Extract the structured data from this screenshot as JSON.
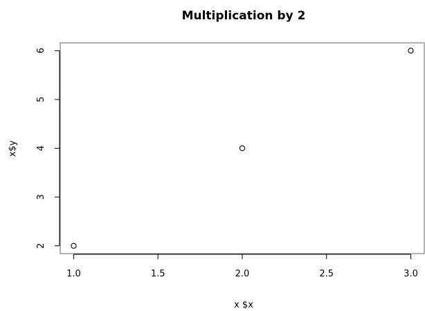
{
  "chart_data": {
    "type": "scatter",
    "title": "Multiplication by 2",
    "xlabel": "x $x",
    "ylabel": "x$y",
    "xlim": [
      0.92,
      3.08
    ],
    "ylim": [
      1.84,
      6.16
    ],
    "x_ticks": [
      1.0,
      1.5,
      2.0,
      2.5,
      3.0
    ],
    "x_tick_labels": [
      "1.0",
      "1.5",
      "2.0",
      "2.5",
      "3.0"
    ],
    "y_ticks": [
      2,
      3,
      4,
      5,
      6
    ],
    "y_tick_labels": [
      "2",
      "3",
      "4",
      "5",
      "6"
    ],
    "x": [
      1,
      2,
      3
    ],
    "y": [
      2,
      4,
      6
    ],
    "point_shape": "open-circle",
    "grid": false,
    "legend": "none",
    "colors": {
      "points": "#000000",
      "axes": "#000000",
      "box": "#666666"
    }
  }
}
